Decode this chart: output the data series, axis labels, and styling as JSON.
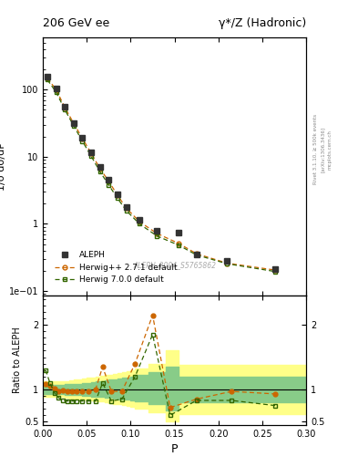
{
  "title_left": "206 GeV ee",
  "title_right": "γ*/Z (Hadronic)",
  "ylabel_main": "1/σ dσ/dP",
  "ylabel_ratio": "Ratio to ALEPH",
  "xlabel": "P",
  "watermark": "ALEPH_2004_S5765862",
  "right_label1": "Rivet 3.1.10, ≥ 500k events",
  "right_label2": "[arXiv:1306.3436]",
  "right_label3": "mcplots.cern.ch",
  "aleph_x": [
    0.005,
    0.015,
    0.025,
    0.035,
    0.045,
    0.055,
    0.065,
    0.075,
    0.085,
    0.095,
    0.11,
    0.13,
    0.155,
    0.175,
    0.21,
    0.265
  ],
  "aleph_y": [
    155.0,
    105.0,
    55.0,
    32.0,
    19.0,
    11.5,
    7.0,
    4.5,
    2.8,
    1.8,
    1.15,
    0.8,
    0.75,
    0.35,
    0.28,
    0.21
  ],
  "aleph_color": "#333333",
  "herwig_x": [
    0.005,
    0.015,
    0.025,
    0.035,
    0.045,
    0.055,
    0.065,
    0.075,
    0.085,
    0.095,
    0.11,
    0.13,
    0.155,
    0.175,
    0.21,
    0.265
  ],
  "herwig_y": [
    148.0,
    100.0,
    54.0,
    31.5,
    18.8,
    11.2,
    6.7,
    4.3,
    2.68,
    1.72,
    1.08,
    0.72,
    0.51,
    0.36,
    0.26,
    0.205
  ],
  "herwig_color": "#cc6600",
  "herwig_label": "Herwig++ 2.7.1 default",
  "herwig7_x": [
    0.005,
    0.015,
    0.025,
    0.035,
    0.045,
    0.055,
    0.065,
    0.075,
    0.085,
    0.095,
    0.11,
    0.13,
    0.155,
    0.175,
    0.21,
    0.265
  ],
  "herwig7_y": [
    140.0,
    92.0,
    50.0,
    29.0,
    17.0,
    10.2,
    6.0,
    3.8,
    2.4,
    1.58,
    1.0,
    0.66,
    0.48,
    0.345,
    0.255,
    0.195
  ],
  "herwig7_color": "#336600",
  "herwig7_label": "Herwig 7.0.0 default",
  "ratio_herwig_x": [
    0.003,
    0.008,
    0.013,
    0.018,
    0.023,
    0.028,
    0.033,
    0.038,
    0.045,
    0.052,
    0.06,
    0.068,
    0.078,
    0.09,
    0.105,
    0.125,
    0.145,
    0.175,
    0.215,
    0.265
  ],
  "ratio_herwig_y": [
    1.08,
    1.05,
    1.02,
    0.97,
    0.98,
    0.97,
    0.97,
    0.97,
    0.97,
    0.97,
    1.0,
    1.35,
    0.97,
    0.97,
    1.4,
    2.15,
    0.72,
    0.85,
    0.97,
    0.93
  ],
  "ratio_herwig7_x": [
    0.003,
    0.008,
    0.013,
    0.018,
    0.023,
    0.028,
    0.033,
    0.038,
    0.045,
    0.052,
    0.06,
    0.068,
    0.078,
    0.09,
    0.105,
    0.125,
    0.145,
    0.175,
    0.215,
    0.265
  ],
  "ratio_herwig7_y": [
    1.3,
    1.1,
    0.95,
    0.87,
    0.83,
    0.82,
    0.82,
    0.82,
    0.82,
    0.82,
    0.82,
    1.1,
    0.82,
    0.85,
    1.2,
    1.85,
    0.6,
    0.83,
    0.83,
    0.75
  ],
  "band_yellow_edges": [
    0.0,
    0.005,
    0.01,
    0.015,
    0.02,
    0.025,
    0.03,
    0.035,
    0.04,
    0.045,
    0.05,
    0.055,
    0.06,
    0.065,
    0.07,
    0.075,
    0.08,
    0.085,
    0.09,
    0.095,
    0.1,
    0.105,
    0.12,
    0.14,
    0.155,
    0.185,
    0.235,
    0.3
  ],
  "band_yellow_lo": [
    0.88,
    0.88,
    0.88,
    0.88,
    0.88,
    0.87,
    0.86,
    0.86,
    0.85,
    0.85,
    0.84,
    0.83,
    0.82,
    0.81,
    0.8,
    0.79,
    0.78,
    0.77,
    0.76,
    0.75,
    0.73,
    0.7,
    0.65,
    0.5,
    0.62,
    0.62,
    0.62,
    0.62
  ],
  "band_yellow_hi": [
    1.12,
    1.12,
    1.12,
    1.12,
    1.13,
    1.13,
    1.14,
    1.15,
    1.16,
    1.17,
    1.18,
    1.19,
    1.2,
    1.21,
    1.22,
    1.23,
    1.24,
    1.26,
    1.27,
    1.28,
    1.3,
    1.33,
    1.4,
    1.6,
    1.38,
    1.38,
    1.38,
    1.38
  ],
  "band_green_edges": [
    0.0,
    0.005,
    0.01,
    0.015,
    0.02,
    0.025,
    0.03,
    0.035,
    0.04,
    0.045,
    0.05,
    0.055,
    0.06,
    0.065,
    0.07,
    0.075,
    0.08,
    0.085,
    0.09,
    0.095,
    0.1,
    0.105,
    0.12,
    0.14,
    0.155,
    0.185,
    0.235,
    0.3
  ],
  "band_green_lo": [
    0.93,
    0.93,
    0.93,
    0.93,
    0.93,
    0.92,
    0.92,
    0.91,
    0.91,
    0.9,
    0.9,
    0.89,
    0.89,
    0.88,
    0.87,
    0.87,
    0.86,
    0.85,
    0.85,
    0.84,
    0.83,
    0.82,
    0.78,
    0.68,
    0.8,
    0.8,
    0.8,
    0.8
  ],
  "band_green_hi": [
    1.07,
    1.07,
    1.07,
    1.07,
    1.07,
    1.08,
    1.08,
    1.09,
    1.09,
    1.1,
    1.1,
    1.11,
    1.12,
    1.13,
    1.14,
    1.15,
    1.16,
    1.17,
    1.18,
    1.19,
    1.2,
    1.22,
    1.27,
    1.35,
    1.2,
    1.2,
    1.2,
    1.2
  ],
  "ylim_main": [
    0.085,
    600
  ],
  "ylim_ratio": [
    0.45,
    2.45
  ],
  "xlim": [
    0.0,
    0.3
  ],
  "yellow_color": "#ffff88",
  "green_color": "#88cc88",
  "background_color": "#ffffff"
}
